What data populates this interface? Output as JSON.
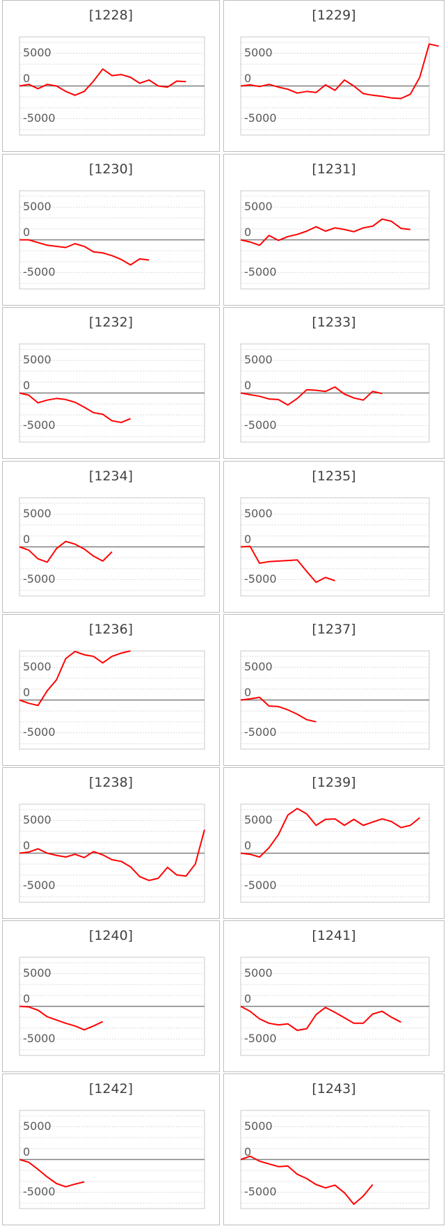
{
  "chart_data": [
    {
      "type": "line",
      "title": "[1228]",
      "yticks": [
        "5000",
        "0",
        "-5000"
      ],
      "ylim": [
        -9000,
        9000
      ],
      "line_color": "#ff0000",
      "series": [
        {
          "values": [
            0,
            300,
            -500,
            300,
            0,
            -1000,
            -1700,
            -1000,
            900,
            3100,
            1900,
            2100,
            1600,
            500,
            1100,
            0,
            -200,
            900,
            800
          ]
        }
      ]
    },
    {
      "type": "line",
      "title": "[1229]",
      "yticks": [
        "5000",
        "0",
        "-5000"
      ],
      "ylim": [
        -9000,
        9000
      ],
      "line_color": "#ff0000",
      "series": [
        {
          "values": [
            0,
            200,
            -100,
            300,
            -200,
            -600,
            -1300,
            -1000,
            -1200,
            200,
            -800,
            1100,
            0,
            -1400,
            -1700,
            -1900,
            -2200,
            -2300,
            -1500,
            1600,
            7700,
            7300
          ]
        }
      ]
    },
    {
      "type": "line",
      "title": "[1230]",
      "yticks": [
        "5000",
        "0",
        "-5000"
      ],
      "ylim": [
        -9000,
        9000
      ],
      "line_color": "#ff0000",
      "series": [
        {
          "values": [
            0,
            0,
            -500,
            -1000,
            -1200,
            -1400,
            -700,
            -1200,
            -2200,
            -2400,
            -2900,
            -3600,
            -4600,
            -3500,
            -3700
          ]
        }
      ]
    },
    {
      "type": "line",
      "title": "[1231]",
      "yticks": [
        "5000",
        "0",
        "-5000"
      ],
      "ylim": [
        -9000,
        9000
      ],
      "line_color": "#ff0000",
      "series": [
        {
          "values": [
            0,
            -400,
            -1000,
            800,
            -100,
            600,
            1000,
            1600,
            2400,
            1600,
            2200,
            1900,
            1500,
            2200,
            2500,
            3800,
            3400,
            2100,
            1900
          ]
        }
      ]
    },
    {
      "type": "line",
      "title": "[1232]",
      "yticks": [
        "5000",
        "0",
        "-5000"
      ],
      "ylim": [
        -9000,
        9000
      ],
      "line_color": "#ff0000",
      "series": [
        {
          "values": [
            0,
            -400,
            -1800,
            -1300,
            -1000,
            -1200,
            -1700,
            -2600,
            -3600,
            -3900,
            -5100,
            -5400,
            -4700
          ]
        }
      ]
    },
    {
      "type": "line",
      "title": "[1233]",
      "yticks": [
        "5000",
        "0",
        "-5000"
      ],
      "ylim": [
        -9000,
        9000
      ],
      "line_color": "#ff0000",
      "series": [
        {
          "values": [
            0,
            -300,
            -600,
            -1100,
            -1200,
            -2200,
            -1000,
            600,
            500,
            300,
            1100,
            -200,
            -900,
            -1300,
            300,
            -100
          ]
        }
      ]
    },
    {
      "type": "line",
      "title": "[1234]",
      "yticks": [
        "5000",
        "0",
        "-5000"
      ],
      "ylim": [
        -9000,
        9000
      ],
      "line_color": "#ff0000",
      "series": [
        {
          "values": [
            0,
            -600,
            -2200,
            -2800,
            -300,
            1000,
            500,
            -400,
            -1700,
            -2600,
            -900
          ]
        }
      ]
    },
    {
      "type": "line",
      "title": "[1235]",
      "yticks": [
        "5000",
        "0",
        "-5000"
      ],
      "ylim": [
        -9000,
        9000
      ],
      "line_color": "#ff0000",
      "series": [
        {
          "values": [
            0,
            100,
            -3000,
            -2700,
            -2600,
            -2500,
            -2400,
            -4500,
            -6500,
            -5600,
            -6200
          ]
        }
      ]
    },
    {
      "type": "line",
      "title": "[1236]",
      "yticks": [
        "5000",
        "0",
        "-5000"
      ],
      "ylim": [
        -9000,
        9000
      ],
      "line_color": "#ff0000",
      "series": [
        {
          "values": [
            0,
            -600,
            -1000,
            1700,
            3700,
            7600,
            8900,
            8300,
            8000,
            6800,
            8000,
            8600,
            9000
          ]
        }
      ]
    },
    {
      "type": "line",
      "title": "[1237]",
      "yticks": [
        "5000",
        "0",
        "-5000"
      ],
      "ylim": [
        -9000,
        9000
      ],
      "line_color": "#ff0000",
      "series": [
        {
          "values": [
            0,
            200,
            500,
            -1100,
            -1200,
            -1800,
            -2600,
            -3600,
            -4000
          ]
        }
      ]
    },
    {
      "type": "line",
      "title": "[1238]",
      "yticks": [
        "5000",
        "0",
        "-5000"
      ],
      "ylim": [
        -9000,
        9000
      ],
      "line_color": "#ff0000",
      "series": [
        {
          "values": [
            0,
            200,
            800,
            0,
            -400,
            -700,
            -200,
            -800,
            300,
            -300,
            -1200,
            -1500,
            -2500,
            -4300,
            -5000,
            -4600,
            -2600,
            -4000,
            -4200,
            -2000,
            4300
          ]
        }
      ]
    },
    {
      "type": "line",
      "title": "[1239]",
      "yticks": [
        "5000",
        "0",
        "-5000"
      ],
      "ylim": [
        -9000,
        9000
      ],
      "line_color": "#ff0000",
      "series": [
        {
          "values": [
            0,
            -200,
            -700,
            1000,
            3400,
            7000,
            8200,
            7200,
            5100,
            6200,
            6300,
            5100,
            6200,
            5100,
            5700,
            6300,
            5800,
            4700,
            5100,
            6500
          ]
        }
      ]
    },
    {
      "type": "line",
      "title": "[1240]",
      "yticks": [
        "5000",
        "0",
        "-5000"
      ],
      "ylim": [
        -9000,
        9000
      ],
      "line_color": "#ff0000",
      "series": [
        {
          "values": [
            0,
            -100,
            -700,
            -1900,
            -2500,
            -3100,
            -3600,
            -4300,
            -3600,
            -2800
          ]
        }
      ]
    },
    {
      "type": "line",
      "title": "[1241]",
      "yticks": [
        "5000",
        "0",
        "-5000"
      ],
      "ylim": [
        -9000,
        9000
      ],
      "line_color": "#ff0000",
      "series": [
        {
          "values": [
            0,
            -900,
            -2300,
            -3100,
            -3400,
            -3200,
            -4400,
            -4100,
            -1500,
            -200,
            -1100,
            -2100,
            -3100,
            -3100,
            -1400,
            -900,
            -2000,
            -2900
          ]
        }
      ]
    },
    {
      "type": "line",
      "title": "[1242]",
      "yticks": [
        "5000",
        "0",
        "-5000"
      ],
      "ylim": [
        -9000,
        9000
      ],
      "line_color": "#ff0000",
      "series": [
        {
          "values": [
            0,
            -500,
            -1800,
            -3200,
            -4400,
            -5000,
            -4500,
            -4100
          ]
        }
      ]
    },
    {
      "type": "line",
      "title": "[1243]",
      "yticks": [
        "5000",
        "0",
        "-5000"
      ],
      "ylim": [
        -9000,
        9000
      ],
      "line_color": "#ff0000",
      "series": [
        {
          "values": [
            0,
            600,
            -300,
            -800,
            -1300,
            -1200,
            -2700,
            -3500,
            -4600,
            -5200,
            -4700,
            -6100,
            -8200,
            -6700,
            -4600
          ]
        }
      ]
    }
  ]
}
